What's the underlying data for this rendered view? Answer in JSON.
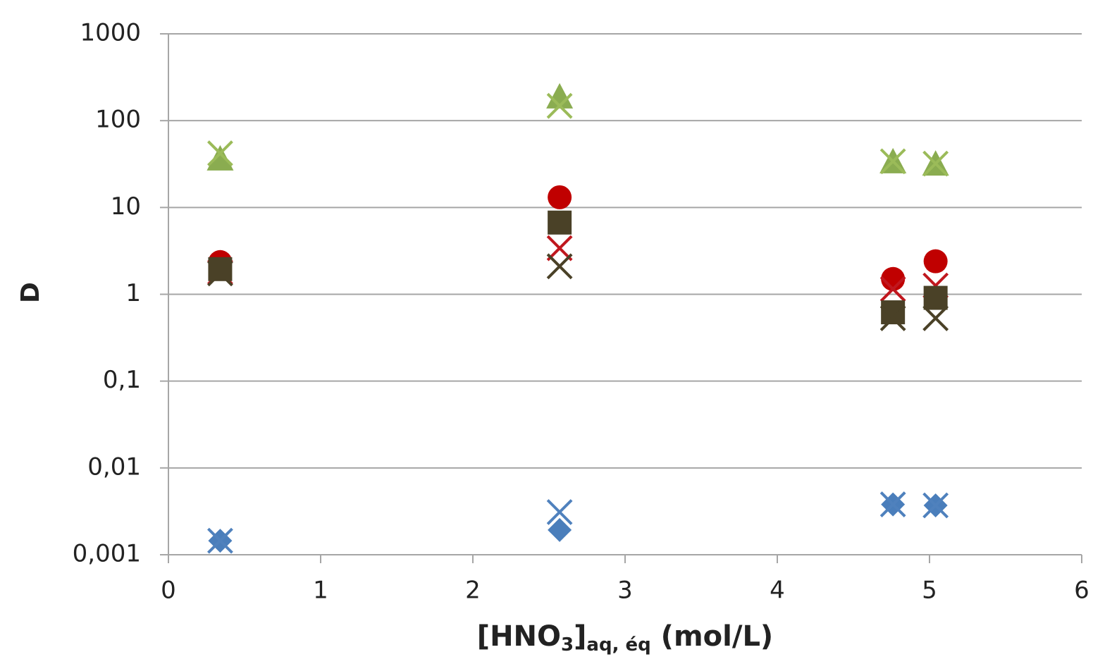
{
  "chart_data": {
    "type": "scatter",
    "ylabel": "D",
    "xlabel": [
      "[HNO",
      "3",
      "]",
      "aq, éq",
      " (mol/L)"
    ],
    "x": [
      0.34,
      2.57,
      4.76,
      5.04
    ],
    "xlim": [
      0,
      6
    ],
    "xticks": [
      0,
      1,
      2,
      3,
      4,
      5,
      6
    ],
    "ylim": [
      0.001,
      1000
    ],
    "ylog": true,
    "yticks": [
      {
        "value": 0.001,
        "label": "0,001"
      },
      {
        "value": 0.01,
        "label": "0,01"
      },
      {
        "value": 0.1,
        "label": "0,1"
      },
      1,
      10,
      100,
      1000
    ],
    "grid": true,
    "series": [
      {
        "marker": "triangle",
        "color": "#8aac50",
        "values": [
          36.6,
          190,
          34,
          32
        ]
      },
      {
        "marker": "x",
        "color": "#9bbb59",
        "values": [
          42,
          148,
          34,
          32
        ]
      },
      {
        "marker": "circle",
        "color": "#c00000",
        "values": [
          2.35,
          13.1,
          1.5,
          2.4
        ]
      },
      {
        "marker": "x",
        "color": "#c0171e",
        "values": [
          1.8,
          3.4,
          1.15,
          1.26
        ]
      },
      {
        "marker": "square",
        "color": "#4a4127",
        "values": [
          1.95,
          6.7,
          0.62,
          0.91
        ]
      },
      {
        "marker": "x",
        "color": "#4a4127",
        "values": [
          1.74,
          2.1,
          0.53,
          0.53
        ]
      },
      {
        "marker": "diamond",
        "color": "#4a7ebb",
        "values": [
          0.00145,
          0.00193,
          0.0038,
          0.0037
        ]
      },
      {
        "marker": "x",
        "color": "#4f81bd",
        "values": [
          0.00145,
          0.0031,
          0.0038,
          0.0037
        ]
      }
    ]
  }
}
